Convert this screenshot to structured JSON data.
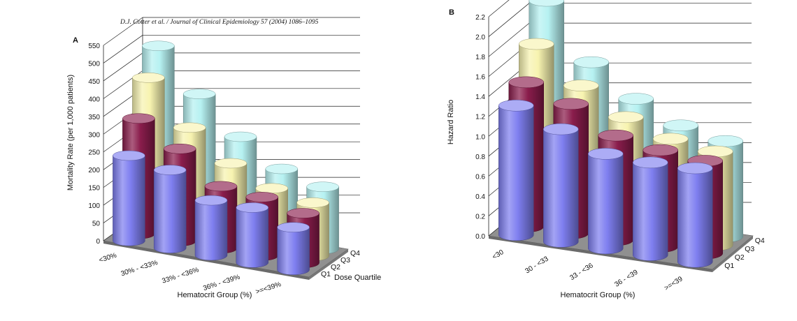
{
  "citation": "D.J. Cotter et al. / Journal of Clinical Epidemiology 57 (2004) 1086–1095",
  "colors": {
    "Q1": "#7f7ff0",
    "Q2": "#8a1d4c",
    "Q3": "#f7f3b0",
    "Q4": "#b6f1f1",
    "floor": "#909090",
    "grid": "#222222"
  },
  "chart_data": [
    {
      "type": "bar",
      "panel_label": "A",
      "title": "",
      "ylabel": "Mortality Rate (per 1,000 patients)",
      "xlabel": "Hematocrit Group (%)",
      "depth_label": "Dose Quartile",
      "ylim": [
        0,
        550
      ],
      "yticks": [
        0,
        50,
        100,
        150,
        200,
        250,
        300,
        350,
        400,
        450,
        500,
        550
      ],
      "categories": [
        "<30%",
        "30% - <33%",
        "33% - <36%",
        "36% - <39%",
        ">=<39%"
      ],
      "series": [
        {
          "name": "Q1",
          "values": [
            240,
            220,
            155,
            155,
            120
          ]
        },
        {
          "name": "Q2",
          "values": [
            325,
            260,
            175,
            165,
            140
          ]
        },
        {
          "name": "Q3",
          "values": [
            420,
            300,
            220,
            170,
            150
          ]
        },
        {
          "name": "Q4",
          "values": [
            490,
            375,
            275,
            205,
            175
          ]
        }
      ],
      "grid": true
    },
    {
      "type": "bar",
      "panel_label": "B",
      "title": "",
      "ylabel": "Hazard Ratio",
      "xlabel": "Hematocrit Group (%)",
      "depth_label": "",
      "ylim": [
        0,
        2.2
      ],
      "yticks": [
        "0.0",
        "0.2",
        "0.4",
        "0.6",
        "0.8",
        "1.0",
        "1.2",
        "1.4",
        "1.6",
        "1.8",
        "2.0",
        "2.2"
      ],
      "categories": [
        "<30",
        "30 - <33",
        "33 - <36",
        "36 - <39",
        ">=<39"
      ],
      "series": [
        {
          "name": "Q1",
          "values": [
            1.3,
            1.13,
            0.95,
            0.93,
            0.94
          ]
        },
        {
          "name": "Q2",
          "values": [
            1.45,
            1.3,
            1.05,
            0.97,
            0.93
          ]
        },
        {
          "name": "Q3",
          "values": [
            1.75,
            1.4,
            1.15,
            1.0,
            0.94
          ]
        },
        {
          "name": "Q4",
          "values": [
            2.1,
            1.55,
            1.25,
            1.05,
            0.96
          ]
        }
      ],
      "grid": true
    }
  ]
}
